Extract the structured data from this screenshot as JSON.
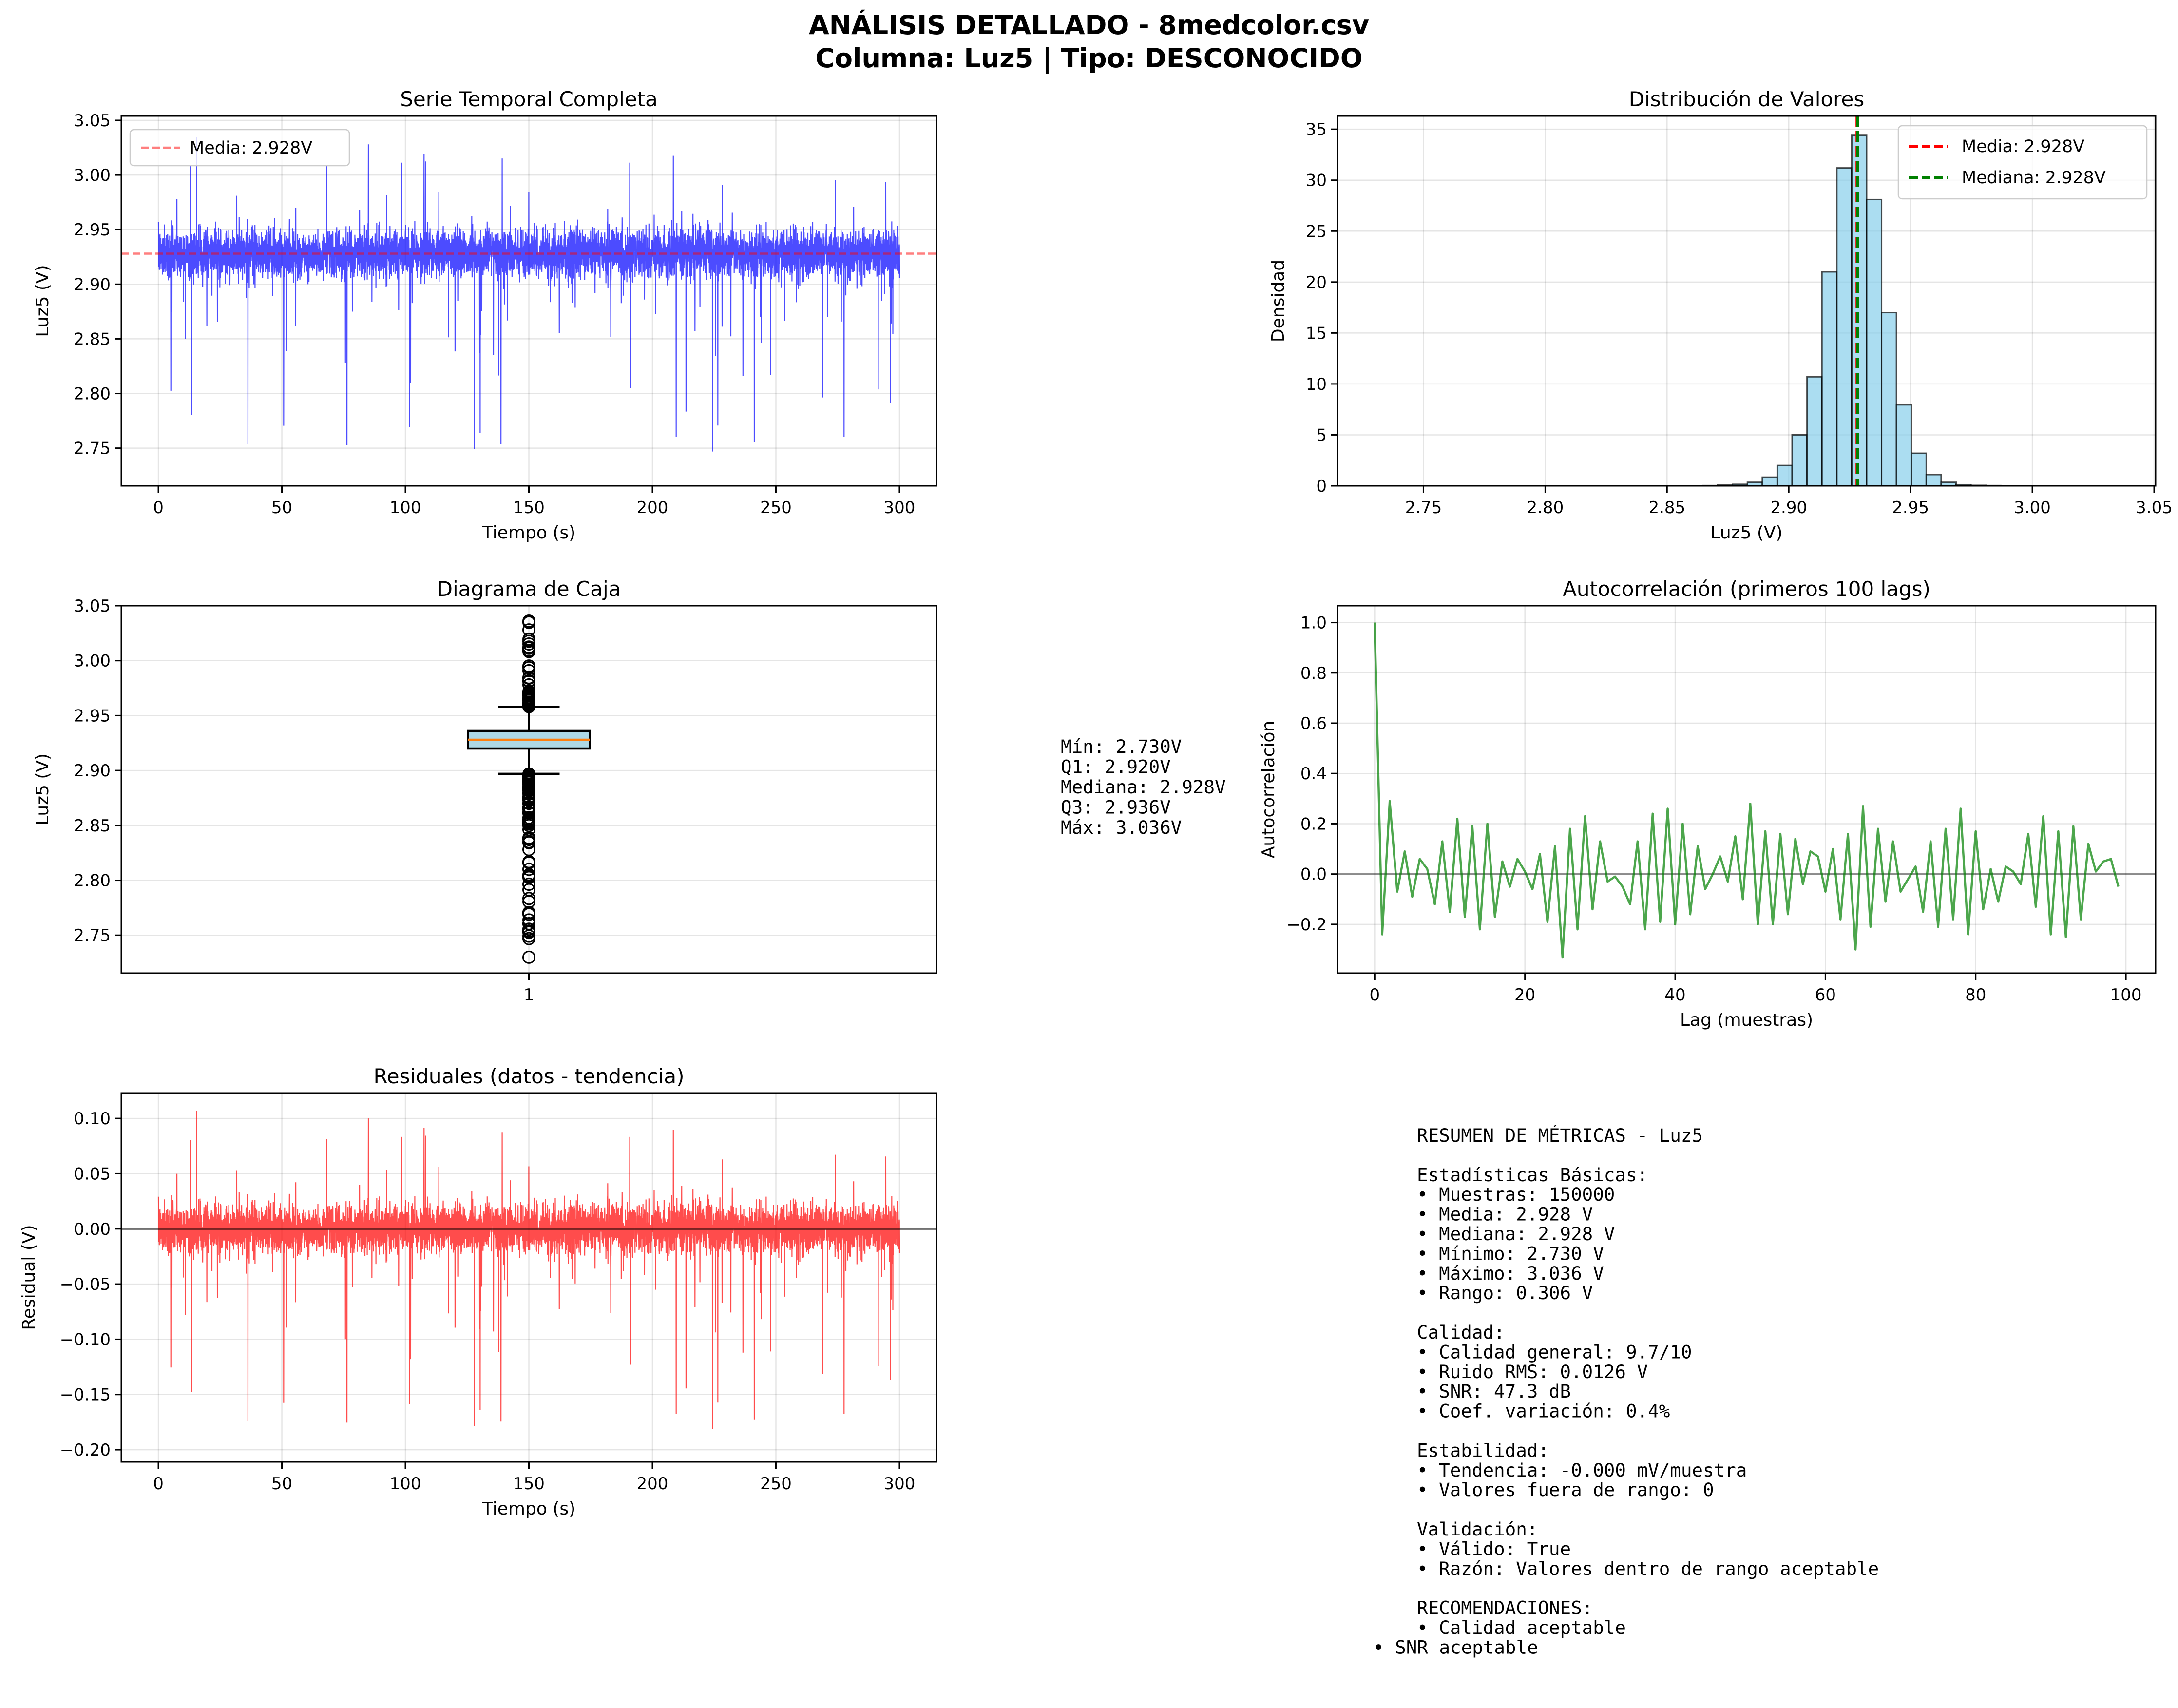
{
  "suptitle": {
    "line1": "ANÁLISIS DETALLADO - 8medcolor.csv",
    "line2": "Columna: Luz5 | Tipo: DESCONOCIDO"
  },
  "colors": {
    "series": "#0000ff",
    "residual": "#ff0000",
    "acf": "#008000",
    "hist_fill": "#87ceeb",
    "box_fill": "#add8e6",
    "median_line": "#ff7f0e",
    "mean_line": "#ff0000",
    "median_vline": "#008000"
  },
  "chart_data": [
    {
      "id": "timeseries",
      "type": "line",
      "title": "Serie Temporal Completa",
      "xlabel": "Tiempo (s)",
      "ylabel": "Luz5 (V)",
      "xlim": [
        -15,
        315
      ],
      "ylim": [
        2.7155,
        3.054
      ],
      "xticks": [
        0,
        50,
        100,
        150,
        200,
        250,
        300
      ],
      "xtick_labels": [
        "0",
        "50",
        "100",
        "150",
        "200",
        "250",
        "300"
      ],
      "yticks": [
        2.75,
        2.8,
        2.85,
        2.9,
        2.95,
        3.0,
        3.05
      ],
      "ytick_labels": [
        "2.75",
        "2.80",
        "2.85",
        "2.90",
        "2.95",
        "3.00",
        "3.05"
      ],
      "grid": true,
      "legend_position": "upper-left",
      "summary": {
        "samples": 150000,
        "duration_s": 300,
        "mean": 2.928,
        "min": 2.73,
        "max": 3.036,
        "noise_rms": 0.0126
      },
      "hline": {
        "value": 2.928,
        "label": "Media: 2.928V"
      }
    },
    {
      "id": "histogram",
      "type": "bar",
      "title": "Distribución de Valores",
      "xlabel": "Luz5 (V)",
      "ylabel": "Densidad",
      "xlim": [
        2.7147,
        3.0506
      ],
      "ylim": [
        0,
        36.3
      ],
      "xticks": [
        2.75,
        2.8,
        2.85,
        2.9,
        2.95,
        3.0,
        3.05
      ],
      "xtick_labels": [
        "2.75",
        "2.80",
        "2.85",
        "2.90",
        "2.95",
        "3.00",
        "3.05"
      ],
      "yticks": [
        0,
        5,
        10,
        15,
        20,
        25,
        30,
        35
      ],
      "ytick_labels": [
        "0",
        "5",
        "10",
        "15",
        "20",
        "25",
        "30",
        "35"
      ],
      "grid": true,
      "legend_position": "upper-right",
      "bin_start": 2.73,
      "bin_end": 3.036,
      "densities": [
        0.005,
        0.005,
        0.005,
        0.005,
        0.005,
        0.005,
        0.005,
        0.005,
        0.005,
        0.005,
        0.005,
        0.005,
        0.005,
        0.005,
        0.005,
        0.005,
        0.005,
        0.005,
        0.005,
        0.005,
        0.005,
        0.01,
        0.03,
        0.08,
        0.15,
        0.35,
        0.85,
        2.0,
        5.0,
        10.7,
        21.0,
        31.2,
        34.4,
        28.1,
        17.0,
        7.95,
        3.2,
        1.1,
        0.35,
        0.12,
        0.05,
        0.03,
        0.01,
        0.01,
        0.005,
        0.005,
        0.005,
        0.005,
        0.005,
        0.005
      ],
      "vlines": [
        {
          "value": 2.928,
          "label": "Media: 2.928V",
          "color": "#ff0000"
        },
        {
          "value": 2.928,
          "label": "Mediana: 2.928V",
          "color": "#008000"
        }
      ]
    },
    {
      "id": "boxplot",
      "type": "box",
      "title": "Diagrama de Caja",
      "ylabel": "Luz5 (V)",
      "ylim": [
        2.7155,
        3.05
      ],
      "yticks": [
        2.75,
        2.8,
        2.85,
        2.9,
        2.95,
        3.0,
        3.05
      ],
      "ytick_labels": [
        "2.75",
        "2.80",
        "2.85",
        "2.90",
        "2.95",
        "3.00",
        "3.05"
      ],
      "xtick_labels": [
        "1"
      ],
      "grid": true,
      "stats": {
        "min": 2.73,
        "q1": 2.92,
        "median": 2.928,
        "q3": 2.936,
        "max": 3.036,
        "whisker_low": 2.897,
        "whisker_high": 2.958
      },
      "stats_text": [
        "Mín: 2.730V",
        "Q1: 2.920V",
        "Mediana: 2.928V",
        "Q3: 2.936V",
        "Máx: 3.036V"
      ]
    },
    {
      "id": "acf",
      "type": "line",
      "title": "Autocorrelación (primeros 100 lags)",
      "xlabel": "Lag (muestras)",
      "ylabel": "Autocorrelación",
      "xlim": [
        -4.95,
        103.95
      ],
      "ylim": [
        -0.394,
        1.067
      ],
      "xticks": [
        0,
        20,
        40,
        60,
        80,
        100
      ],
      "xtick_labels": [
        "0",
        "20",
        "40",
        "60",
        "80",
        "100"
      ],
      "yticks": [
        -0.2,
        0.0,
        0.2,
        0.4,
        0.6,
        0.8,
        1.0
      ],
      "ytick_labels": [
        "−0.2",
        "0.0",
        "0.2",
        "0.4",
        "0.6",
        "0.8",
        "1.0"
      ],
      "grid": true,
      "values": [
        1.0,
        -0.24,
        0.29,
        -0.07,
        0.09,
        -0.09,
        0.06,
        0.02,
        -0.12,
        0.13,
        -0.15,
        0.22,
        -0.17,
        0.19,
        -0.22,
        0.2,
        -0.17,
        0.05,
        -0.05,
        0.06,
        0.01,
        -0.06,
        0.08,
        -0.19,
        0.11,
        -0.33,
        0.18,
        -0.22,
        0.23,
        -0.14,
        0.13,
        -0.03,
        -0.01,
        -0.05,
        -0.12,
        0.13,
        -0.22,
        0.24,
        -0.19,
        0.26,
        -0.2,
        0.2,
        -0.16,
        0.11,
        -0.06,
        0.0,
        0.07,
        -0.03,
        0.15,
        -0.1,
        0.28,
        -0.2,
        0.17,
        -0.2,
        0.16,
        -0.16,
        0.14,
        -0.04,
        0.09,
        0.07,
        -0.07,
        0.1,
        -0.18,
        0.16,
        -0.3,
        0.27,
        -0.21,
        0.18,
        -0.11,
        0.13,
        -0.07,
        -0.02,
        0.03,
        -0.15,
        0.13,
        -0.21,
        0.18,
        -0.18,
        0.26,
        -0.24,
        0.17,
        -0.14,
        0.02,
        -0.11,
        0.03,
        0.01,
        -0.04,
        0.16,
        -0.13,
        0.23,
        -0.24,
        0.17,
        -0.25,
        0.19,
        -0.18,
        0.12,
        0.01,
        0.05,
        0.06,
        -0.05
      ],
      "hline": 0.0
    },
    {
      "id": "residuals",
      "type": "line",
      "title": "Residuales (datos - tendencia)",
      "xlabel": "Tiempo (s)",
      "ylabel": "Residual (V)",
      "xlim": [
        -15,
        315
      ],
      "ylim": [
        -0.211,
        0.123
      ],
      "xticks": [
        0,
        50,
        100,
        150,
        200,
        250,
        300
      ],
      "xtick_labels": [
        "0",
        "50",
        "100",
        "150",
        "200",
        "250",
        "300"
      ],
      "yticks": [
        -0.2,
        -0.15,
        -0.1,
        -0.05,
        0.0,
        0.05,
        0.1
      ],
      "ytick_labels": [
        "−0.20",
        "−0.15",
        "−0.10",
        "−0.05",
        "0.00",
        "0.05",
        "0.10"
      ],
      "grid": true,
      "summary": {
        "min": -0.19,
        "max": 0.108
      },
      "hline": 0.0
    }
  ],
  "metrics": {
    "lines": [
      "RESUMEN DE MÉTRICAS - Luz5",
      "",
      "Estadísticas Básicas:",
      "• Muestras: 150000",
      "• Media: 2.928 V",
      "• Mediana: 2.928 V",
      "• Mínimo: 2.730 V",
      "• Máximo: 3.036 V",
      "• Rango: 0.306 V",
      "",
      "Calidad:",
      "• Calidad general: 9.7/10",
      "• Ruido RMS: 0.0126 V",
      "• SNR: 47.3 dB",
      "• Coef. variación: 0.4%",
      "",
      "Estabilidad:",
      "• Tendencia: -0.000 mV/muestra",
      "• Valores fuera de rango: 0",
      "",
      "Validación:",
      "• Válido: True",
      "• Razón: Valores dentro de rango aceptable",
      "",
      "RECOMENDACIONES:",
      "• Calidad aceptable",
      "• SNR aceptable"
    ]
  }
}
